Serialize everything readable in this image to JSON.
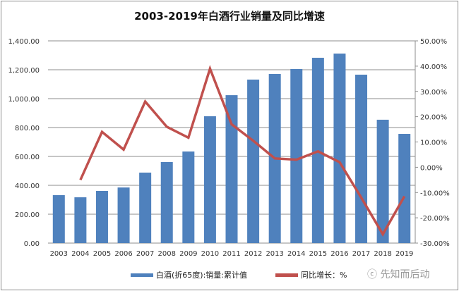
{
  "chart_data": {
    "type": "bar+line",
    "title": "2003-2019年白酒行业销量及同比增速",
    "categories": [
      "2003",
      "2004",
      "2005",
      "2006",
      "2007",
      "2008",
      "2009",
      "2010",
      "2011",
      "2012",
      "2013",
      "2014",
      "2015",
      "2016",
      "2017",
      "2018",
      "2019"
    ],
    "series": [
      {
        "name": "白酒(折65度):销量:累计值",
        "type": "bar",
        "axis": "left",
        "color": "#4f81bd",
        "values": [
          332,
          317,
          361,
          385,
          488,
          561,
          634,
          878,
          1024,
          1132,
          1171,
          1205,
          1283,
          1312,
          1166,
          854,
          756
        ]
      },
      {
        "name": "同比增长：%",
        "type": "line",
        "axis": "right",
        "color": "#c0504d",
        "values": [
          null,
          -5.0,
          14.0,
          7.0,
          26.0,
          16.0,
          11.7,
          39.0,
          17.0,
          10.5,
          3.5,
          3.0,
          6.3,
          2.0,
          -12.0,
          -26.5,
          -11.5
        ]
      }
    ],
    "y_left": {
      "range": [
        0,
        1400
      ],
      "ticks": [
        "0.00",
        "200.00",
        "400.00",
        "600.00",
        "800.00",
        "1,000.00",
        "1,200.00",
        "1,400.00"
      ]
    },
    "y_right": {
      "range": [
        -30,
        50
      ],
      "ticks": [
        "-30.00%",
        "-20.00%",
        "-10.00%",
        "0.00%",
        "10.00%",
        "20.00%",
        "30.00%",
        "40.00%",
        "50.00%"
      ]
    },
    "grid": true,
    "legend": "bottom"
  },
  "watermark": "先知而后动"
}
